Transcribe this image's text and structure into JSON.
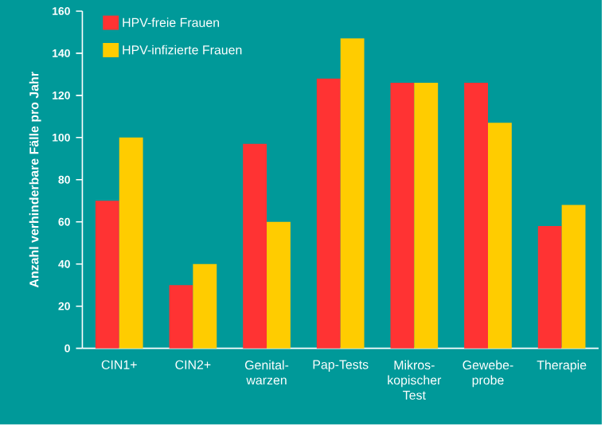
{
  "chart_data": {
    "type": "bar",
    "ylabel": "Anzahl verhinderbare Fälle pro Jahr",
    "categories": [
      "CIN1+",
      "CIN2+",
      "Genital-warzen",
      "Pap-Tests",
      "Mikros-kopischer Test",
      "Gewebe-probe",
      "Therapie"
    ],
    "series": [
      {
        "name": "HPV-freie Frauen",
        "color": "#ff3333",
        "values": [
          70,
          30,
          97,
          128,
          126,
          126,
          58
        ]
      },
      {
        "name": "HPV-infizierte Frauen",
        "color": "#ffcc00",
        "values": [
          100,
          40,
          60,
          147,
          126,
          107,
          68
        ]
      }
    ],
    "ylim": [
      0,
      160
    ],
    "yticks": [
      0,
      20,
      40,
      60,
      80,
      100,
      120,
      140,
      160
    ],
    "grid": false,
    "legend": "top left"
  }
}
